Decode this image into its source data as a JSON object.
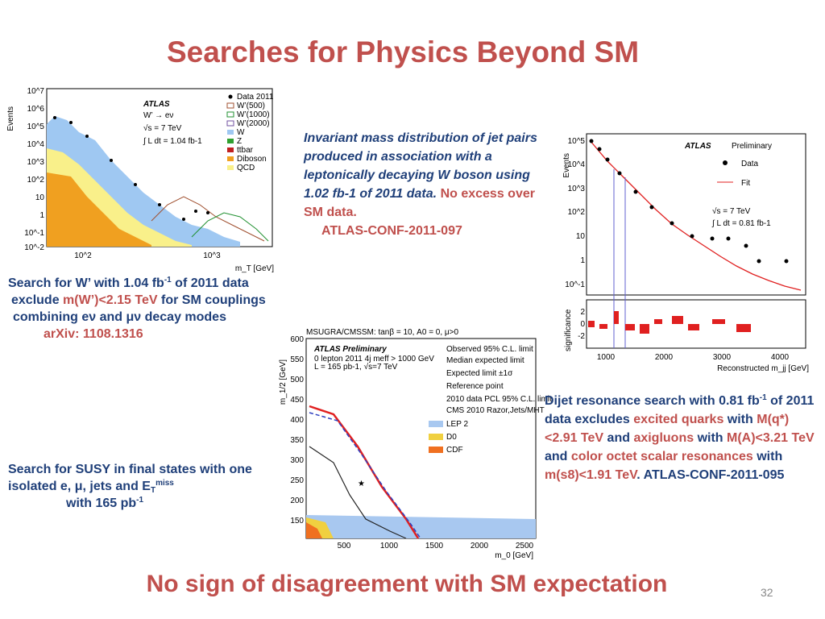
{
  "title": "Searches for Physics Beyond SM",
  "wprime": {
    "l1a": "Search for W’ with 1.04 fb",
    "l1sup": "-1",
    "l1b": " of 2011 data",
    "l2a": "exclude ",
    "l2red": "m(W’)<2.15 TeV",
    "l2b": " for SM couplings",
    "l3": "combining eν and μν decay modes",
    "l4red": "arXiv: 1108.1316"
  },
  "intro": {
    "italic": "Invariant mass distribution of jet pairs produced in association with a leptonically decaying W boson using 1.02 fb-1 of 2011 data.",
    "red1": "No excess over SM data.",
    "red2": "ATLAS-CONF-2011-097"
  },
  "susy": {
    "a": "Search for SUSY in final states with one isolated  e, μ, jets and E",
    "sub": "T",
    "sup": "miss",
    "b": "with 165 pb",
    "bsup": "-1"
  },
  "dijet": {
    "a": "Dijet resonance search with 0.81 fb",
    "asup": "-1",
    "b": " of 2011 data excludes ",
    "r1": "excited quarks",
    "c": " with ",
    "r2": "M(q*)<2.91 TeV",
    "d": " and ",
    "r3": "axigluons",
    "e": " with  ",
    "r4": "M(A)<3.21 TeV",
    "f": " and ",
    "r5": "color octet scalar resonances",
    "g": " with ",
    "r6": "m(s8)<1.91 TeV",
    "h": ". ATLAS-CONF-2011-095"
  },
  "plot1": {
    "ylabel": "Events",
    "xlabel": "m_T [GeV]",
    "atlas": "ATLAS",
    "process": "W’ → eν",
    "energy": "√s = 7 TeV",
    "lumi": "∫ L dt = 1.04 fb-1",
    "yticks": [
      "10^7",
      "10^6",
      "10^5",
      "10^4",
      "10^3",
      "10^2",
      "10",
      "1",
      "10^-1",
      "10^-2"
    ],
    "xticks": [
      "10^2",
      "10^3"
    ],
    "legend": [
      "Data 2011",
      "W’(500)",
      "W’(1000)",
      "W’(2000)",
      "W",
      "Z",
      "ttbar",
      "Diboson",
      "QCD"
    ]
  },
  "plot2": {
    "ylabel": "Events",
    "atlas": "ATLAS",
    "prelim": "Preliminary",
    "legend": [
      "Data",
      "Fit"
    ],
    "energy": "√s = 7 TeV",
    "lumi": "∫ L dt = 0.81 fb-1",
    "yticks": [
      "10^5",
      "10^4",
      "10^3",
      "10^2",
      "10",
      "1",
      "10^-1"
    ],
    "sigticks": [
      "2",
      "0",
      "-2"
    ],
    "siglabel": "significance",
    "xticks": [
      "1000",
      "2000",
      "3000",
      "4000"
    ],
    "xlabel": "Reconstructed m_jj [GeV]"
  },
  "plot3": {
    "header": "MSUGRA/CMSSM: tanβ = 10, A0 = 0, μ>0",
    "atlas": "ATLAS Preliminary",
    "sel": "0 lepton 2011 4j meff > 1000 GeV",
    "lumi": "L = 165 pb-1, √s=7 TeV",
    "ylabel": "m_1/2 [GeV]",
    "xlabel": "m_0 [GeV]",
    "yticks": [
      "600",
      "550",
      "500",
      "450",
      "400",
      "350",
      "300",
      "250",
      "200",
      "150"
    ],
    "xticks": [
      "500",
      "1000",
      "1500",
      "2000",
      "2500"
    ],
    "legend": [
      "Observed 95% C.L. limit",
      "Median expected limit",
      "Expected limit ±1σ",
      "Reference point",
      "2010 data PCL 95% C.L. limit",
      "CMS 2010 Razor,Jets/MHT",
      "LEP 2",
      "D0",
      "CDF"
    ]
  },
  "footer": "No sign of disagreement with SM expectation",
  "page": "32"
}
